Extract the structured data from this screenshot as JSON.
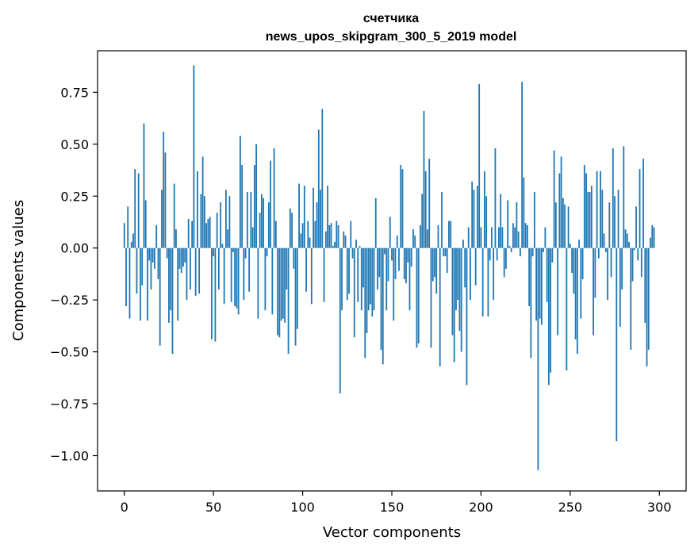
{
  "chart_data": {
    "type": "bar",
    "title": "счетчика",
    "subtitle": "news_upos_skipgram_300_5_2019 model",
    "xlabel": "Vector components",
    "ylabel": "Components values",
    "xlim": [
      -15,
      315
    ],
    "ylim": [
      -1.17,
      0.95
    ],
    "xticks": [
      0,
      50,
      100,
      150,
      200,
      250,
      300
    ],
    "yticks": [
      0.75,
      0.5,
      0.25,
      0.0,
      -0.25,
      -0.5,
      -0.75,
      -1.0
    ],
    "ytick_labels": [
      "0.75",
      "0.50",
      "0.25",
      "0.00",
      "−0.25",
      "−0.50",
      "−0.75",
      "−1.00"
    ],
    "bar_color": "#1f77b4",
    "grid": false,
    "values": [
      0.12,
      -0.28,
      0.2,
      -0.34,
      0.03,
      0.07,
      0.38,
      -0.22,
      0.36,
      -0.35,
      -0.18,
      0.6,
      0.23,
      -0.35,
      -0.06,
      -0.2,
      -0.07,
      -0.1,
      0.11,
      -0.15,
      -0.47,
      0.28,
      0.56,
      0.46,
      -0.05,
      -0.36,
      -0.3,
      -0.51,
      0.31,
      0.09,
      -0.35,
      -0.1,
      -0.12,
      -0.09,
      -0.07,
      -0.25,
      0.14,
      -0.2,
      0.13,
      0.88,
      -0.23,
      0.37,
      -0.22,
      0.26,
      0.44,
      0.25,
      0.12,
      0.14,
      0.15,
      -0.44,
      -0.04,
      -0.45,
      0.17,
      -0.2,
      0.22,
      0.02,
      -0.27,
      0.28,
      0.09,
      0.25,
      -0.26,
      -0.02,
      -0.28,
      -0.29,
      -0.32,
      0.54,
      0.4,
      -0.25,
      -0.05,
      0.27,
      -0.21,
      0.27,
      0.1,
      0.4,
      0.5,
      -0.34,
      0.17,
      0.26,
      0.24,
      -0.3,
      -0.04,
      0.22,
      0.42,
      -0.32,
      0.48,
      0.13,
      -0.42,
      -0.43,
      -0.35,
      -0.34,
      -0.36,
      -0.2,
      -0.51,
      0.19,
      0.17,
      -0.1,
      -0.47,
      -0.39,
      0.31,
      0.07,
      0.12,
      0.3,
      -0.21,
      0.13,
      0.05,
      -0.27,
      0.29,
      0.13,
      0.22,
      0.57,
      0.28,
      0.67,
      -0.26,
      0.08,
      0.3,
      0.11,
      0.12,
      0.01,
      0.03,
      0.13,
      0.11,
      -0.7,
      -0.3,
      0.08,
      0.06,
      -0.25,
      -0.22,
      0.13,
      -0.05,
      -0.43,
      0.04,
      -0.26,
      0.01,
      -0.3,
      -0.19,
      -0.53,
      -0.41,
      -0.3,
      -0.27,
      -0.33,
      -0.3,
      0.24,
      -0.2,
      -0.14,
      -0.49,
      -0.56,
      -0.03,
      -0.3,
      -0.16,
      0.15,
      -0.06,
      -0.35,
      -0.15,
      0.06,
      -0.11,
      0.4,
      0.38,
      -0.15,
      -0.17,
      -0.07,
      -0.3,
      -0.09,
      0.09,
      0.06,
      -0.48,
      -0.46,
      0.11,
      0.26,
      0.66,
      0.37,
      0.09,
      0.43,
      -0.48,
      -0.16,
      -0.14,
      -0.22,
      0.11,
      -0.57,
      0.27,
      -0.04,
      -0.04,
      -0.12,
      0.13,
      0.13,
      -0.42,
      -0.55,
      -0.3,
      -0.25,
      -0.4,
      -0.5,
      0.04,
      -0.19,
      -0.66,
      0.1,
      -0.25,
      0.32,
      0.28,
      -0.18,
      0.3,
      0.79,
      0.1,
      -0.33,
      0.37,
      0.25,
      -0.33,
      -0.06,
      0.1,
      -0.25,
      0.48,
      -0.06,
      0.1,
      0.26,
      0.1,
      -0.14,
      -0.1,
      0.23,
      0.01,
      -0.02,
      0.12,
      0.1,
      0.22,
      0.08,
      -0.04,
      0.8,
      0.34,
      0.12,
      0.11,
      -0.28,
      -0.53,
      -0.04,
      0.27,
      -0.35,
      -1.07,
      -0.34,
      -0.37,
      -0.02,
      0.1,
      -0.26,
      -0.66,
      -0.6,
      -0.07,
      0.47,
      0.22,
      -0.42,
      0.36,
      0.44,
      0.24,
      0.21,
      -0.59,
      0.2,
      0.02,
      -0.12,
      -0.22,
      -0.44,
      -0.51,
      0.04,
      -0.34,
      -0.15,
      0.4,
      0.36,
      0.27,
      0.27,
      0.3,
      -0.42,
      -0.24,
      0.37,
      -0.05,
      0.37,
      0.28,
      0.07,
      -0.02,
      -0.25,
      0.22,
      -0.14,
      0.48,
      0.25,
      -0.93,
      0.28,
      -0.38,
      -0.2,
      0.49,
      0.09,
      0.07,
      0.03,
      -0.49,
      -0.16,
      -0.01,
      0.2,
      -0.06,
      0.38,
      -0.14,
      0.43,
      -0.36,
      -0.57,
      -0.49,
      0.05,
      0.11,
      0.1
    ]
  }
}
